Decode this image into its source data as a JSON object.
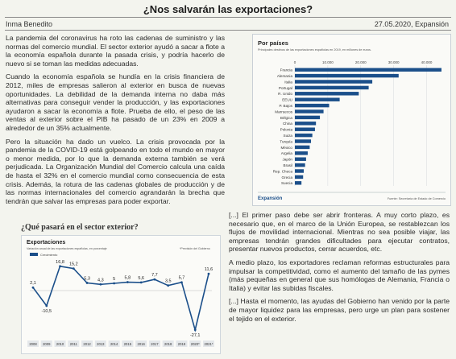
{
  "header": {
    "title": "¿Nos salvarán las exportaciones?",
    "author": "Inma Benedito",
    "dateline": "27.05.2020, Expansión"
  },
  "body_left": [
    "La pandemia del coronavirus ha roto las cadenas de suministro y las normas del comercio mundial. El sector exterior ayudó a sacar a flote a la economía española durante la pasada crisis, y podría hacerlo de nuevo si se toman las medidas adecuadas.",
    "Cuando la economía española se hundía en la crisis financiera de 2012, miles de empresas salieron al exterior en busca de nuevas oportunidades. La debilidad de la demanda interna no daba más alternativas para conseguir vender la producción, y las exportaciones ayudaron a sacar la economía a flote. Prueba de ello, el peso de las ventas al exterior sobre el PIB ha pasado de un 23% en 2009 a alrededor de un 35% actualmente.",
    "Pero la situación ha dado un vuelco. La crisis provocada por la pandemia de la COVID-19 está golpeando en todo el mundo en mayor o menor medida, por lo que la demanda externa también se verá perjudicada. La Organización Mundial del Comercio calcula una caída de hasta el 32% en el comercio mundial como consecuencia de esta crisis. Además, la rotura de las cadenas globales de producción y de las normas internacionales del comercio agrandarán la brecha que tendrán que salvar las empresas para poder exportar."
  ],
  "body_right": [
    "[...] El primer paso debe ser abrir fronteras. A muy corto plazo, es necesario que, en el marco de la Unión Europea, se restablezcan los flujos de movilidad internacional. Mientras no sea posible viajar, las empresas tendrán grandes dificultades para ejecutar contratos, presentar nuevos productos, cerrar acuerdos, etc.",
    "A medio plazo, los exportadores reclaman reformas estructurales para impulsar la competitividad, como el aumento del tamaño de las pymes (más pequeñas en general que sus homólogas de Alemania, Francia o Italia) y evitar las subidas fiscales.",
    "[...] Hasta el momento, las ayudas del Gobierno han venido por la parte de mayor liquidez para las empresas, pero urge un plan para sostener el tejido en el exterior."
  ],
  "small_chart_caption": "¿Qué pasará en el sector exterior?",
  "chart_data": [
    {
      "type": "line",
      "title": "Exportaciones",
      "subtitle": "Variación anual de las exportaciones españolas, en porcentaje",
      "legend": "Crecimiento",
      "note": "*Previsión del Gobierno",
      "x": [
        "2008",
        "2009",
        "2010",
        "2011",
        "2012",
        "2013",
        "2014",
        "2015",
        "2016",
        "2017",
        "2018",
        "2019",
        "2020*",
        "2021*"
      ],
      "values": [
        2.1,
        -10.5,
        16.8,
        15.2,
        5.3,
        4.3,
        5.0,
        5.8,
        5.6,
        7.7,
        3.5,
        5.7,
        -27.1,
        11.6
      ],
      "ylim": [
        -30,
        20
      ],
      "color": "#1b4f8a"
    },
    {
      "type": "bar",
      "title": "Por países",
      "subtitle": "Principales destinos de las exportaciones españolas en 2019, en millones de euros.",
      "categories": [
        "Francia",
        "Alemania",
        "Italia",
        "Portugal",
        "R. Unido",
        "EEUU",
        "P. Bajos",
        "Marruecos",
        "Bélgica",
        "China",
        "Polonia",
        "Suiza",
        "Turquía",
        "México",
        "Argelia",
        "Japón",
        "Brasil",
        "Rep. Checa",
        "Grecia",
        "Suecia"
      ],
      "values": [
        44500,
        31500,
        23500,
        22400,
        19400,
        13600,
        10400,
        8700,
        7600,
        6400,
        6100,
        5300,
        4900,
        4500,
        3900,
        3400,
        3100,
        2700,
        2500,
        2000
      ],
      "xlim": [
        0,
        45000
      ],
      "ticks": [
        "0",
        "10.000",
        "20.000",
        "30.000",
        "40.000"
      ],
      "tick_values": [
        0,
        10000,
        20000,
        30000,
        40000
      ],
      "color": "#1b4f8a",
      "brand": "Expansión",
      "source": "Fuente: Secretaría de Estado de Comercio"
    }
  ]
}
